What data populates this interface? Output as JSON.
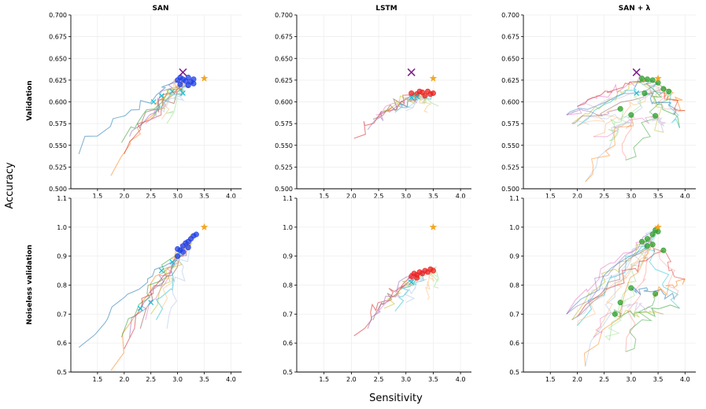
{
  "figure": {
    "xlabel": "Sensitivity",
    "ylabel": "Accuracy",
    "row_labels": [
      "Validation",
      "Noiseless validation"
    ],
    "col_titles": [
      "SAN",
      "LSTM",
      "SAN + λ"
    ],
    "colors": {
      "traj_palette": [
        "#1f77b4",
        "#ff7f0e",
        "#2ca02c",
        "#d62728",
        "#9467bd",
        "#8c564b",
        "#e377c2",
        "#bcbd22",
        "#17becf",
        "#aec7e8",
        "#ffbb78",
        "#98df8a",
        "#ff9896",
        "#c5b0d5"
      ],
      "san_end": "#1f3fe8",
      "lstm_end": "#ee2222",
      "lambda_end": "#2ca02c",
      "star": "#f5a623",
      "cross": "#7b1c8c",
      "cyan_mark": "#17becf"
    }
  },
  "chart_data": [
    {
      "type": "scatter",
      "title": "SAN",
      "row": "Validation",
      "xlim": [
        1.0,
        4.2
      ],
      "ylim": [
        0.5,
        0.7
      ],
      "xticks": [
        "1.5",
        "2.0",
        "2.5",
        "3.0",
        "3.5",
        "4.0"
      ],
      "yticks": [
        "0.500",
        "0.525",
        "0.550",
        "0.575",
        "0.600",
        "0.625",
        "0.650",
        "0.675",
        "0.700"
      ],
      "xtick_values": [
        1.5,
        2.0,
        2.5,
        3.0,
        3.5,
        4.0
      ],
      "ytick_values": [
        0.5,
        0.525,
        0.55,
        0.575,
        0.6,
        0.625,
        0.65,
        0.675,
        0.7
      ],
      "trajectory_starts": [
        [
          1.15,
          0.54
        ],
        [
          1.75,
          0.515
        ],
        [
          1.95,
          0.553
        ],
        [
          2.0,
          0.54
        ],
        [
          2.1,
          0.56
        ],
        [
          2.3,
          0.57
        ],
        [
          2.4,
          0.575
        ],
        [
          2.5,
          0.58
        ],
        [
          2.55,
          0.585
        ],
        [
          2.6,
          0.582
        ],
        [
          2.7,
          0.58
        ],
        [
          2.8,
          0.575
        ]
      ],
      "endpoints": [
        [
          3.0,
          0.625
        ],
        [
          3.05,
          0.628
        ],
        [
          3.1,
          0.626
        ],
        [
          3.15,
          0.624
        ],
        [
          3.2,
          0.628
        ],
        [
          3.25,
          0.623
        ],
        [
          3.3,
          0.626
        ],
        [
          3.05,
          0.62
        ],
        [
          3.2,
          0.619
        ],
        [
          3.3,
          0.621
        ]
      ],
      "cyan_marks": [
        [
          2.7,
          0.607
        ],
        [
          2.9,
          0.612
        ],
        [
          3.1,
          0.61
        ],
        [
          2.55,
          0.6
        ]
      ],
      "star": [
        3.5,
        0.627
      ],
      "cross": [
        3.1,
        0.634
      ]
    },
    {
      "type": "scatter",
      "title": "LSTM",
      "row": "Validation",
      "xlim": [
        1.0,
        4.2
      ],
      "ylim": [
        0.5,
        0.7
      ],
      "xticks": [
        "1.5",
        "2.0",
        "2.5",
        "3.0",
        "3.5",
        "4.0"
      ],
      "yticks": [
        "0.500",
        "0.525",
        "0.550",
        "0.575",
        "0.600",
        "0.625",
        "0.650",
        "0.675",
        "0.700"
      ],
      "xtick_values": [
        1.5,
        2.0,
        2.5,
        3.0,
        3.5,
        4.0
      ],
      "ytick_values": [
        0.5,
        0.525,
        0.55,
        0.575,
        0.6,
        0.625,
        0.65,
        0.675,
        0.7
      ],
      "trajectory_starts": [
        [
          2.05,
          0.558
        ],
        [
          2.3,
          0.568
        ],
        [
          2.4,
          0.58
        ],
        [
          2.45,
          0.585
        ],
        [
          2.6,
          0.59
        ],
        [
          2.8,
          0.588
        ],
        [
          3.0,
          0.59
        ],
        [
          3.4,
          0.588
        ],
        [
          3.6,
          0.595
        ]
      ],
      "endpoints": [
        [
          3.1,
          0.61
        ],
        [
          3.2,
          0.609
        ],
        [
          3.3,
          0.611
        ],
        [
          3.35,
          0.607
        ],
        [
          3.4,
          0.612
        ],
        [
          3.45,
          0.609
        ],
        [
          3.5,
          0.61
        ],
        [
          3.25,
          0.612
        ]
      ],
      "cyan_marks": [
        [
          3.1,
          0.605
        ],
        [
          3.2,
          0.606
        ]
      ],
      "star": [
        3.5,
        0.627
      ],
      "cross": [
        3.1,
        0.634
      ]
    },
    {
      "type": "scatter",
      "title": "SAN + λ",
      "row": "Validation",
      "xlim": [
        1.0,
        4.2
      ],
      "ylim": [
        0.5,
        0.7
      ],
      "xticks": [
        "1.5",
        "2.0",
        "2.5",
        "3.0",
        "3.5",
        "4.0"
      ],
      "yticks": [
        "0.500",
        "0.525",
        "0.550",
        "0.575",
        "0.600",
        "0.625",
        "0.650",
        "0.675",
        "0.700"
      ],
      "xtick_values": [
        1.5,
        2.0,
        2.5,
        3.0,
        3.5,
        4.0
      ],
      "ytick_values": [
        0.5,
        0.525,
        0.55,
        0.575,
        0.6,
        0.625,
        0.65,
        0.675,
        0.7
      ],
      "trajectory_starts": [
        [
          1.8,
          0.585
        ],
        [
          1.9,
          0.575
        ],
        [
          2.0,
          0.572
        ],
        [
          2.15,
          0.508
        ],
        [
          2.3,
          0.56
        ],
        [
          2.6,
          0.555
        ],
        [
          2.9,
          0.533
        ],
        [
          3.6,
          0.565
        ],
        [
          3.8,
          0.585
        ],
        [
          4.0,
          0.59
        ],
        [
          3.9,
          0.57
        ],
        [
          2.0,
          0.595
        ]
      ],
      "endpoints": [
        [
          3.2,
          0.627
        ],
        [
          3.3,
          0.626
        ],
        [
          3.4,
          0.625
        ],
        [
          3.5,
          0.622
        ],
        [
          3.6,
          0.615
        ],
        [
          2.8,
          0.592
        ],
        [
          3.0,
          0.585
        ],
        [
          3.45,
          0.584
        ],
        [
          3.25,
          0.61
        ],
        [
          3.7,
          0.612
        ]
      ],
      "cyan_marks": [
        [
          3.1,
          0.61
        ]
      ],
      "star": [
        3.5,
        0.627
      ],
      "cross": [
        3.1,
        0.634
      ]
    },
    {
      "type": "scatter",
      "title": "SAN",
      "row": "Noiseless validation",
      "xlim": [
        1.0,
        4.2
      ],
      "ylim": [
        0.5,
        1.1
      ],
      "xticks": [
        "1.5",
        "2.0",
        "2.5",
        "3.0",
        "3.5",
        "4.0"
      ],
      "yticks": [
        "0.5",
        "0.6",
        "0.7",
        "0.8",
        "0.9",
        "1.0",
        "1.1"
      ],
      "xtick_values": [
        1.5,
        2.0,
        2.5,
        3.0,
        3.5,
        4.0
      ],
      "ytick_values": [
        0.5,
        0.6,
        0.7,
        0.8,
        0.9,
        1.0,
        1.1
      ],
      "trajectory_starts": [
        [
          1.15,
          0.585
        ],
        [
          1.75,
          0.505
        ],
        [
          1.95,
          0.62
        ],
        [
          2.0,
          0.58
        ],
        [
          2.1,
          0.62
        ],
        [
          2.3,
          0.65
        ],
        [
          2.4,
          0.68
        ],
        [
          2.5,
          0.7
        ],
        [
          2.6,
          0.68
        ],
        [
          2.8,
          0.65
        ],
        [
          2.7,
          0.72
        ]
      ],
      "endpoints": [
        [
          3.0,
          0.9
        ],
        [
          3.05,
          0.92
        ],
        [
          3.1,
          0.935
        ],
        [
          3.15,
          0.945
        ],
        [
          3.2,
          0.95
        ],
        [
          3.25,
          0.96
        ],
        [
          3.3,
          0.97
        ],
        [
          3.35,
          0.975
        ],
        [
          3.1,
          0.915
        ],
        [
          3.2,
          0.93
        ],
        [
          3.0,
          0.925
        ]
      ],
      "cyan_marks": [
        [
          2.7,
          0.85
        ],
        [
          2.9,
          0.88
        ],
        [
          2.5,
          0.74
        ],
        [
          2.3,
          0.72
        ]
      ],
      "star": [
        3.5,
        1.0
      ]
    },
    {
      "type": "scatter",
      "title": "LSTM",
      "row": "Noiseless validation",
      "xlim": [
        1.0,
        4.2
      ],
      "ylim": [
        0.5,
        1.1
      ],
      "xticks": [
        "1.5",
        "2.0",
        "2.5",
        "3.0",
        "3.5",
        "4.0"
      ],
      "yticks": [
        "0.5",
        "0.6",
        "0.7",
        "0.8",
        "0.9",
        "1.0",
        "1.1"
      ],
      "xtick_values": [
        1.5,
        2.0,
        2.5,
        3.0,
        3.5,
        4.0
      ],
      "ytick_values": [
        0.5,
        0.6,
        0.7,
        0.8,
        0.9,
        1.0,
        1.1
      ],
      "trajectory_starts": [
        [
          2.05,
          0.625
        ],
        [
          2.3,
          0.65
        ],
        [
          2.4,
          0.68
        ],
        [
          2.45,
          0.7
        ],
        [
          2.6,
          0.72
        ],
        [
          2.8,
          0.71
        ],
        [
          3.0,
          0.74
        ],
        [
          3.4,
          0.75
        ],
        [
          3.6,
          0.79
        ]
      ],
      "endpoints": [
        [
          3.1,
          0.83
        ],
        [
          3.15,
          0.84
        ],
        [
          3.2,
          0.835
        ],
        [
          3.25,
          0.845
        ],
        [
          3.3,
          0.84
        ],
        [
          3.35,
          0.85
        ],
        [
          3.4,
          0.845
        ],
        [
          3.45,
          0.855
        ],
        [
          3.5,
          0.85
        ],
        [
          3.2,
          0.825
        ]
      ],
      "cyan_marks": [
        [
          3.1,
          0.81
        ]
      ],
      "star": [
        3.5,
        1.0
      ]
    },
    {
      "type": "scatter",
      "title": "SAN + λ",
      "row": "Noiseless validation",
      "xlim": [
        1.0,
        4.2
      ],
      "ylim": [
        0.5,
        1.1
      ],
      "xticks": [
        "1.5",
        "2.0",
        "2.5",
        "3.0",
        "3.5",
        "4.0"
      ],
      "yticks": [
        "0.5",
        "0.6",
        "0.7",
        "0.8",
        "0.9",
        "1.0",
        "1.1"
      ],
      "xtick_values": [
        1.5,
        2.0,
        2.5,
        3.0,
        3.5,
        4.0
      ],
      "ytick_values": [
        0.5,
        0.6,
        0.7,
        0.8,
        0.9,
        1.0,
        1.1
      ],
      "trajectory_starts": [
        [
          1.8,
          0.7
        ],
        [
          1.9,
          0.68
        ],
        [
          2.0,
          0.66
        ],
        [
          2.15,
          0.52
        ],
        [
          2.3,
          0.62
        ],
        [
          2.6,
          0.61
        ],
        [
          2.9,
          0.57
        ],
        [
          3.6,
          0.7
        ],
        [
          3.8,
          0.75
        ],
        [
          4.0,
          0.82
        ],
        [
          3.9,
          0.72
        ],
        [
          2.0,
          0.69
        ]
      ],
      "endpoints": [
        [
          3.2,
          0.95
        ],
        [
          3.3,
          0.96
        ],
        [
          3.4,
          0.975
        ],
        [
          3.45,
          0.99
        ],
        [
          3.5,
          0.985
        ],
        [
          3.3,
          0.935
        ],
        [
          3.4,
          0.94
        ],
        [
          2.8,
          0.74
        ],
        [
          3.0,
          0.79
        ],
        [
          3.45,
          0.77
        ],
        [
          2.7,
          0.7
        ],
        [
          3.6,
          0.92
        ]
      ],
      "cyan_marks": [],
      "star": [
        3.5,
        1.0
      ]
    }
  ]
}
